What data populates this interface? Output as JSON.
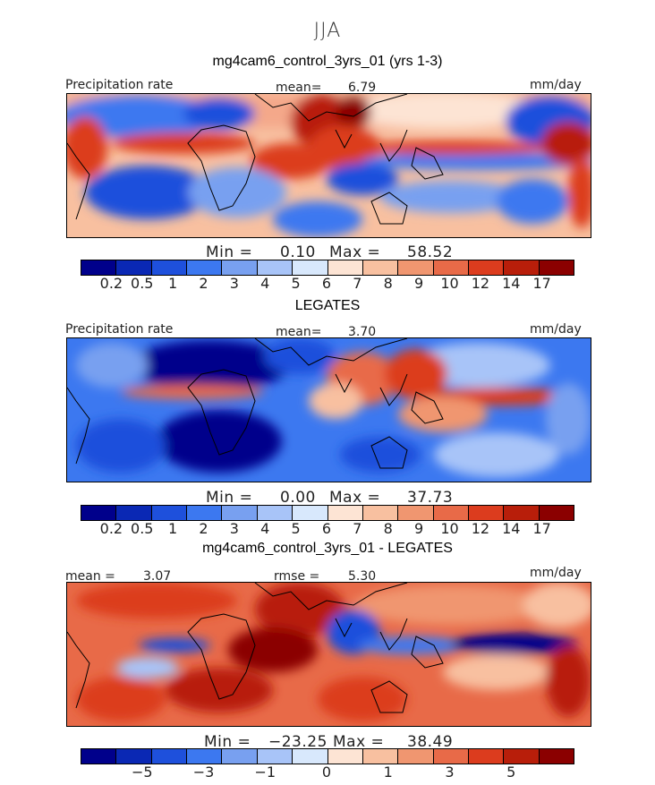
{
  "season": "JJA",
  "colors": {
    "abs_scale": [
      "#00008b",
      "#0a28b4",
      "#1e50dc",
      "#3c78f0",
      "#78a0f0",
      "#a8c4f8",
      "#d8e8fc",
      "#fde4d4",
      "#f8c0a0",
      "#f09670",
      "#e86a48",
      "#dc3c1e",
      "#b81e0a",
      "#8b0000"
    ],
    "diff_scale": [
      "#00008b",
      "#0a28b4",
      "#1e50dc",
      "#3c78f0",
      "#78a0f0",
      "#a8c4f8",
      "#d8e8fc",
      "#fde4d4",
      "#f8c0a0",
      "#f09670",
      "#e86a48",
      "#dc3c1e",
      "#b81e0a",
      "#8b0000"
    ]
  },
  "panel1": {
    "title": "mg4cam6_control_3yrs_01 (yrs 1-3)",
    "left_label": "Precipitation rate",
    "mean_label": "mean=",
    "mean_value": "6.79",
    "units": "mm/day",
    "min_label": "Min =",
    "min_value": "0.10",
    "max_label": "Max =",
    "max_value": "58.52",
    "ticks": [
      "0.2",
      "0.5",
      "1",
      "2",
      "3",
      "4",
      "5",
      "6",
      "7",
      "8",
      "9",
      "10",
      "12",
      "14",
      "17"
    ]
  },
  "panel2": {
    "title": "LEGATES",
    "left_label": "Precipitation rate",
    "mean_label": "mean=",
    "mean_value": "3.70",
    "units": "mm/day",
    "min_label": "Min =",
    "min_value": "0.00",
    "max_label": "Max =",
    "max_value": "37.73",
    "ticks": [
      "0.2",
      "0.5",
      "1",
      "2",
      "3",
      "4",
      "5",
      "6",
      "7",
      "8",
      "9",
      "10",
      "12",
      "14",
      "17"
    ]
  },
  "panel3": {
    "title": "mg4cam6_control_3yrs_01 - LEGATES",
    "mean_label": "mean =",
    "mean_value": "3.07",
    "rmse_label": "rmse =",
    "rmse_value": "5.30",
    "units": "mm/day",
    "min_label": "Min =",
    "min_value": "−23.25",
    "max_label": "Max =",
    "max_value": "38.49",
    "ticks": [
      "−5",
      "−3",
      "−1",
      "0",
      "1",
      "3",
      "5"
    ]
  }
}
